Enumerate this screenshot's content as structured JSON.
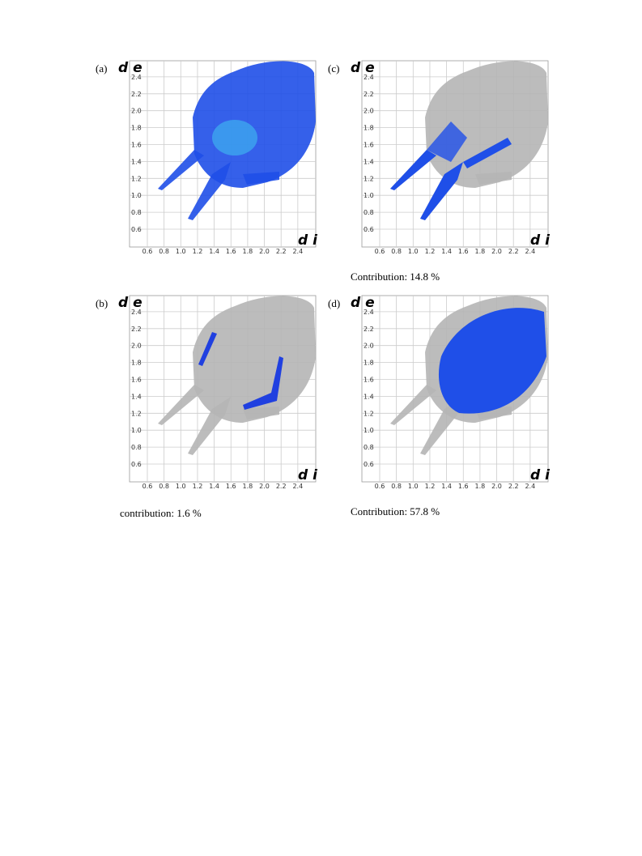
{
  "axis": {
    "y_label": "d e",
    "x_label": "d i",
    "ticks": [
      "0.6",
      "0.8",
      "1.0",
      "1.2",
      "1.4",
      "1.6",
      "1.8",
      "2.0",
      "2.2",
      "2.4"
    ]
  },
  "panels": [
    {
      "label": "(a)"
    },
    {
      "label": "(b)",
      "caption": "contribution: 1.6 %"
    },
    {
      "label": "(c)",
      "caption": "Contribution: 14.8 %"
    },
    {
      "label": "(d)",
      "caption": "Contribution: 57.8 %"
    }
  ]
}
